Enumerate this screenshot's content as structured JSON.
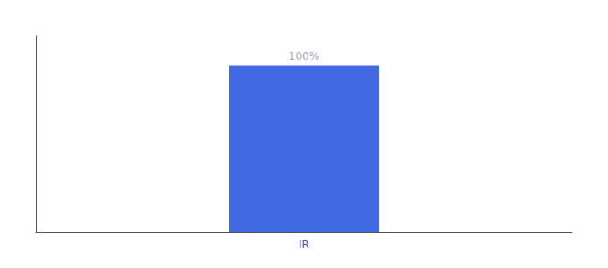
{
  "chart_data": {
    "type": "bar",
    "categories": [
      "IR"
    ],
    "values": [
      100
    ],
    "color": "#4169e1",
    "ylim": [
      0,
      118
    ],
    "grid": false,
    "tick_labels": "x",
    "data_labels": true,
    "value_labels": [
      "100%"
    ]
  }
}
